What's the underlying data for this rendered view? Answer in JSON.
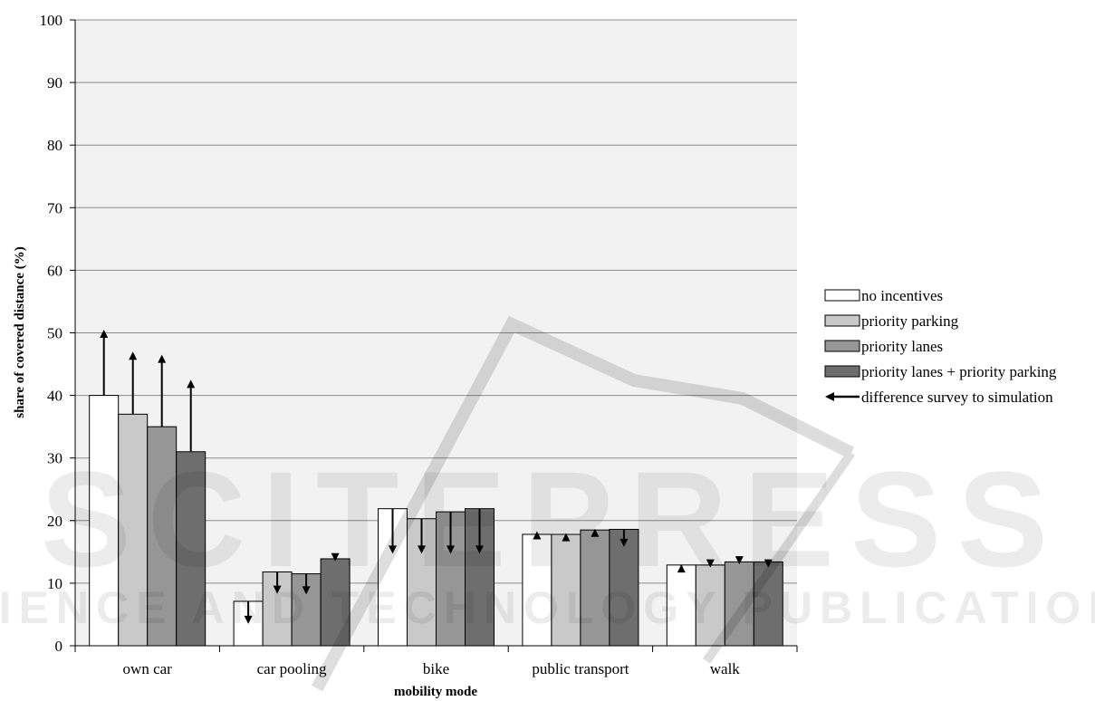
{
  "chart_data": {
    "type": "bar",
    "xlabel": "mobility mode",
    "ylabel": "share of covered distance (%)",
    "ylim": [
      0,
      100
    ],
    "yticks": [
      0,
      10,
      20,
      30,
      40,
      50,
      60,
      70,
      80,
      90,
      100
    ],
    "grid": true,
    "legend_position": "right",
    "categories": [
      "own car",
      "car pooling",
      "bike",
      "public transport",
      "walk"
    ],
    "series": [
      {
        "name": "no incentives",
        "color": "#ffffff",
        "values": [
          40,
          7.1,
          21.9,
          17.8,
          12.9
        ],
        "survey": [
          50.5,
          3.5,
          14.7,
          18.3,
          13.0
        ]
      },
      {
        "name": "priority parking",
        "color": "#c9c9c9",
        "values": [
          37,
          11.8,
          20.3,
          17.8,
          12.9
        ],
        "survey": [
          47,
          8.3,
          14.7,
          18.0,
          12.5
        ]
      },
      {
        "name": "priority lanes",
        "color": "#969696",
        "values": [
          35,
          11.5,
          21.4,
          18.5,
          13.4
        ],
        "survey": [
          46.5,
          8.2,
          14.7,
          18.7,
          13.0
        ]
      },
      {
        "name": "priority lanes + priority parking",
        "color": "#6e6e6e",
        "values": [
          31,
          13.9,
          21.9,
          18.6,
          13.4
        ],
        "survey": [
          42.5,
          13.5,
          14.7,
          15.8,
          12.5
        ]
      }
    ],
    "difference_legend": "difference survey to simulation"
  },
  "watermark": {
    "main": "SCITEPRESS",
    "sub": "SCIENCE AND TECHNOLOGY PUBLICATIONS"
  }
}
